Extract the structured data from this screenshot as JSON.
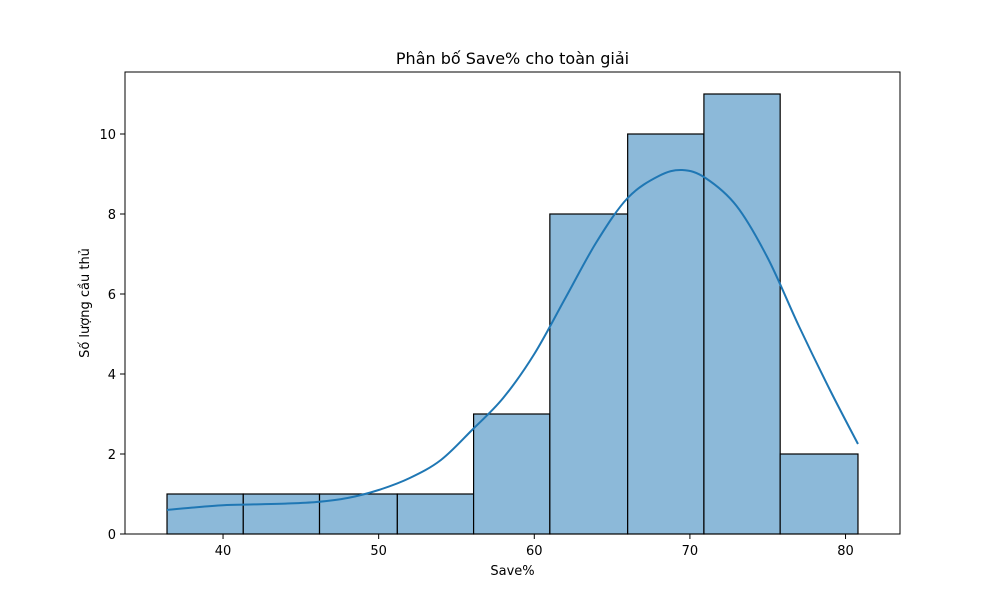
{
  "chart_data": {
    "type": "bar",
    "subtype": "histogram-with-kde",
    "title": "Phân bố Save% cho toàn giải",
    "xlabel": "Save%",
    "ylabel": "Số lượng cầu thủ",
    "xlim": [
      33.7,
      83.5
    ],
    "ylim": [
      0,
      11.55
    ],
    "x_ticks": [
      40,
      50,
      60,
      70,
      80
    ],
    "y_ticks": [
      0,
      2,
      4,
      6,
      8,
      10
    ],
    "grid": false,
    "legend": "none",
    "bar_color": "#8cb9d9",
    "bar_edge_color": "#000000",
    "kde_color": "#1f77b4",
    "bins": [
      {
        "x0": 36.4,
        "x1": 41.3,
        "count": 1
      },
      {
        "x0": 41.3,
        "x1": 46.2,
        "count": 1
      },
      {
        "x0": 46.2,
        "x1": 51.2,
        "count": 1
      },
      {
        "x0": 51.2,
        "x1": 56.1,
        "count": 1
      },
      {
        "x0": 56.1,
        "x1": 61.0,
        "count": 3
      },
      {
        "x0": 61.0,
        "x1": 66.0,
        "count": 8
      },
      {
        "x0": 66.0,
        "x1": 70.9,
        "count": 10
      },
      {
        "x0": 70.9,
        "x1": 75.8,
        "count": 11
      },
      {
        "x0": 75.8,
        "x1": 80.8,
        "count": 2
      }
    ],
    "kde": {
      "x": [
        36.4,
        38.0,
        40.0,
        42.0,
        44.0,
        46.0,
        48.0,
        50.0,
        52.0,
        54.0,
        56.0,
        58.0,
        60.0,
        62.0,
        64.0,
        66.0,
        68.0,
        69.5,
        71.0,
        73.0,
        75.0,
        77.0,
        79.0,
        80.8
      ],
      "y": [
        0.6,
        0.66,
        0.72,
        0.74,
        0.76,
        0.8,
        0.9,
        1.1,
        1.4,
        1.85,
        2.6,
        3.4,
        4.5,
        5.9,
        7.3,
        8.4,
        8.95,
        9.1,
        8.9,
        8.2,
        6.9,
        5.2,
        3.6,
        2.25
      ]
    }
  }
}
